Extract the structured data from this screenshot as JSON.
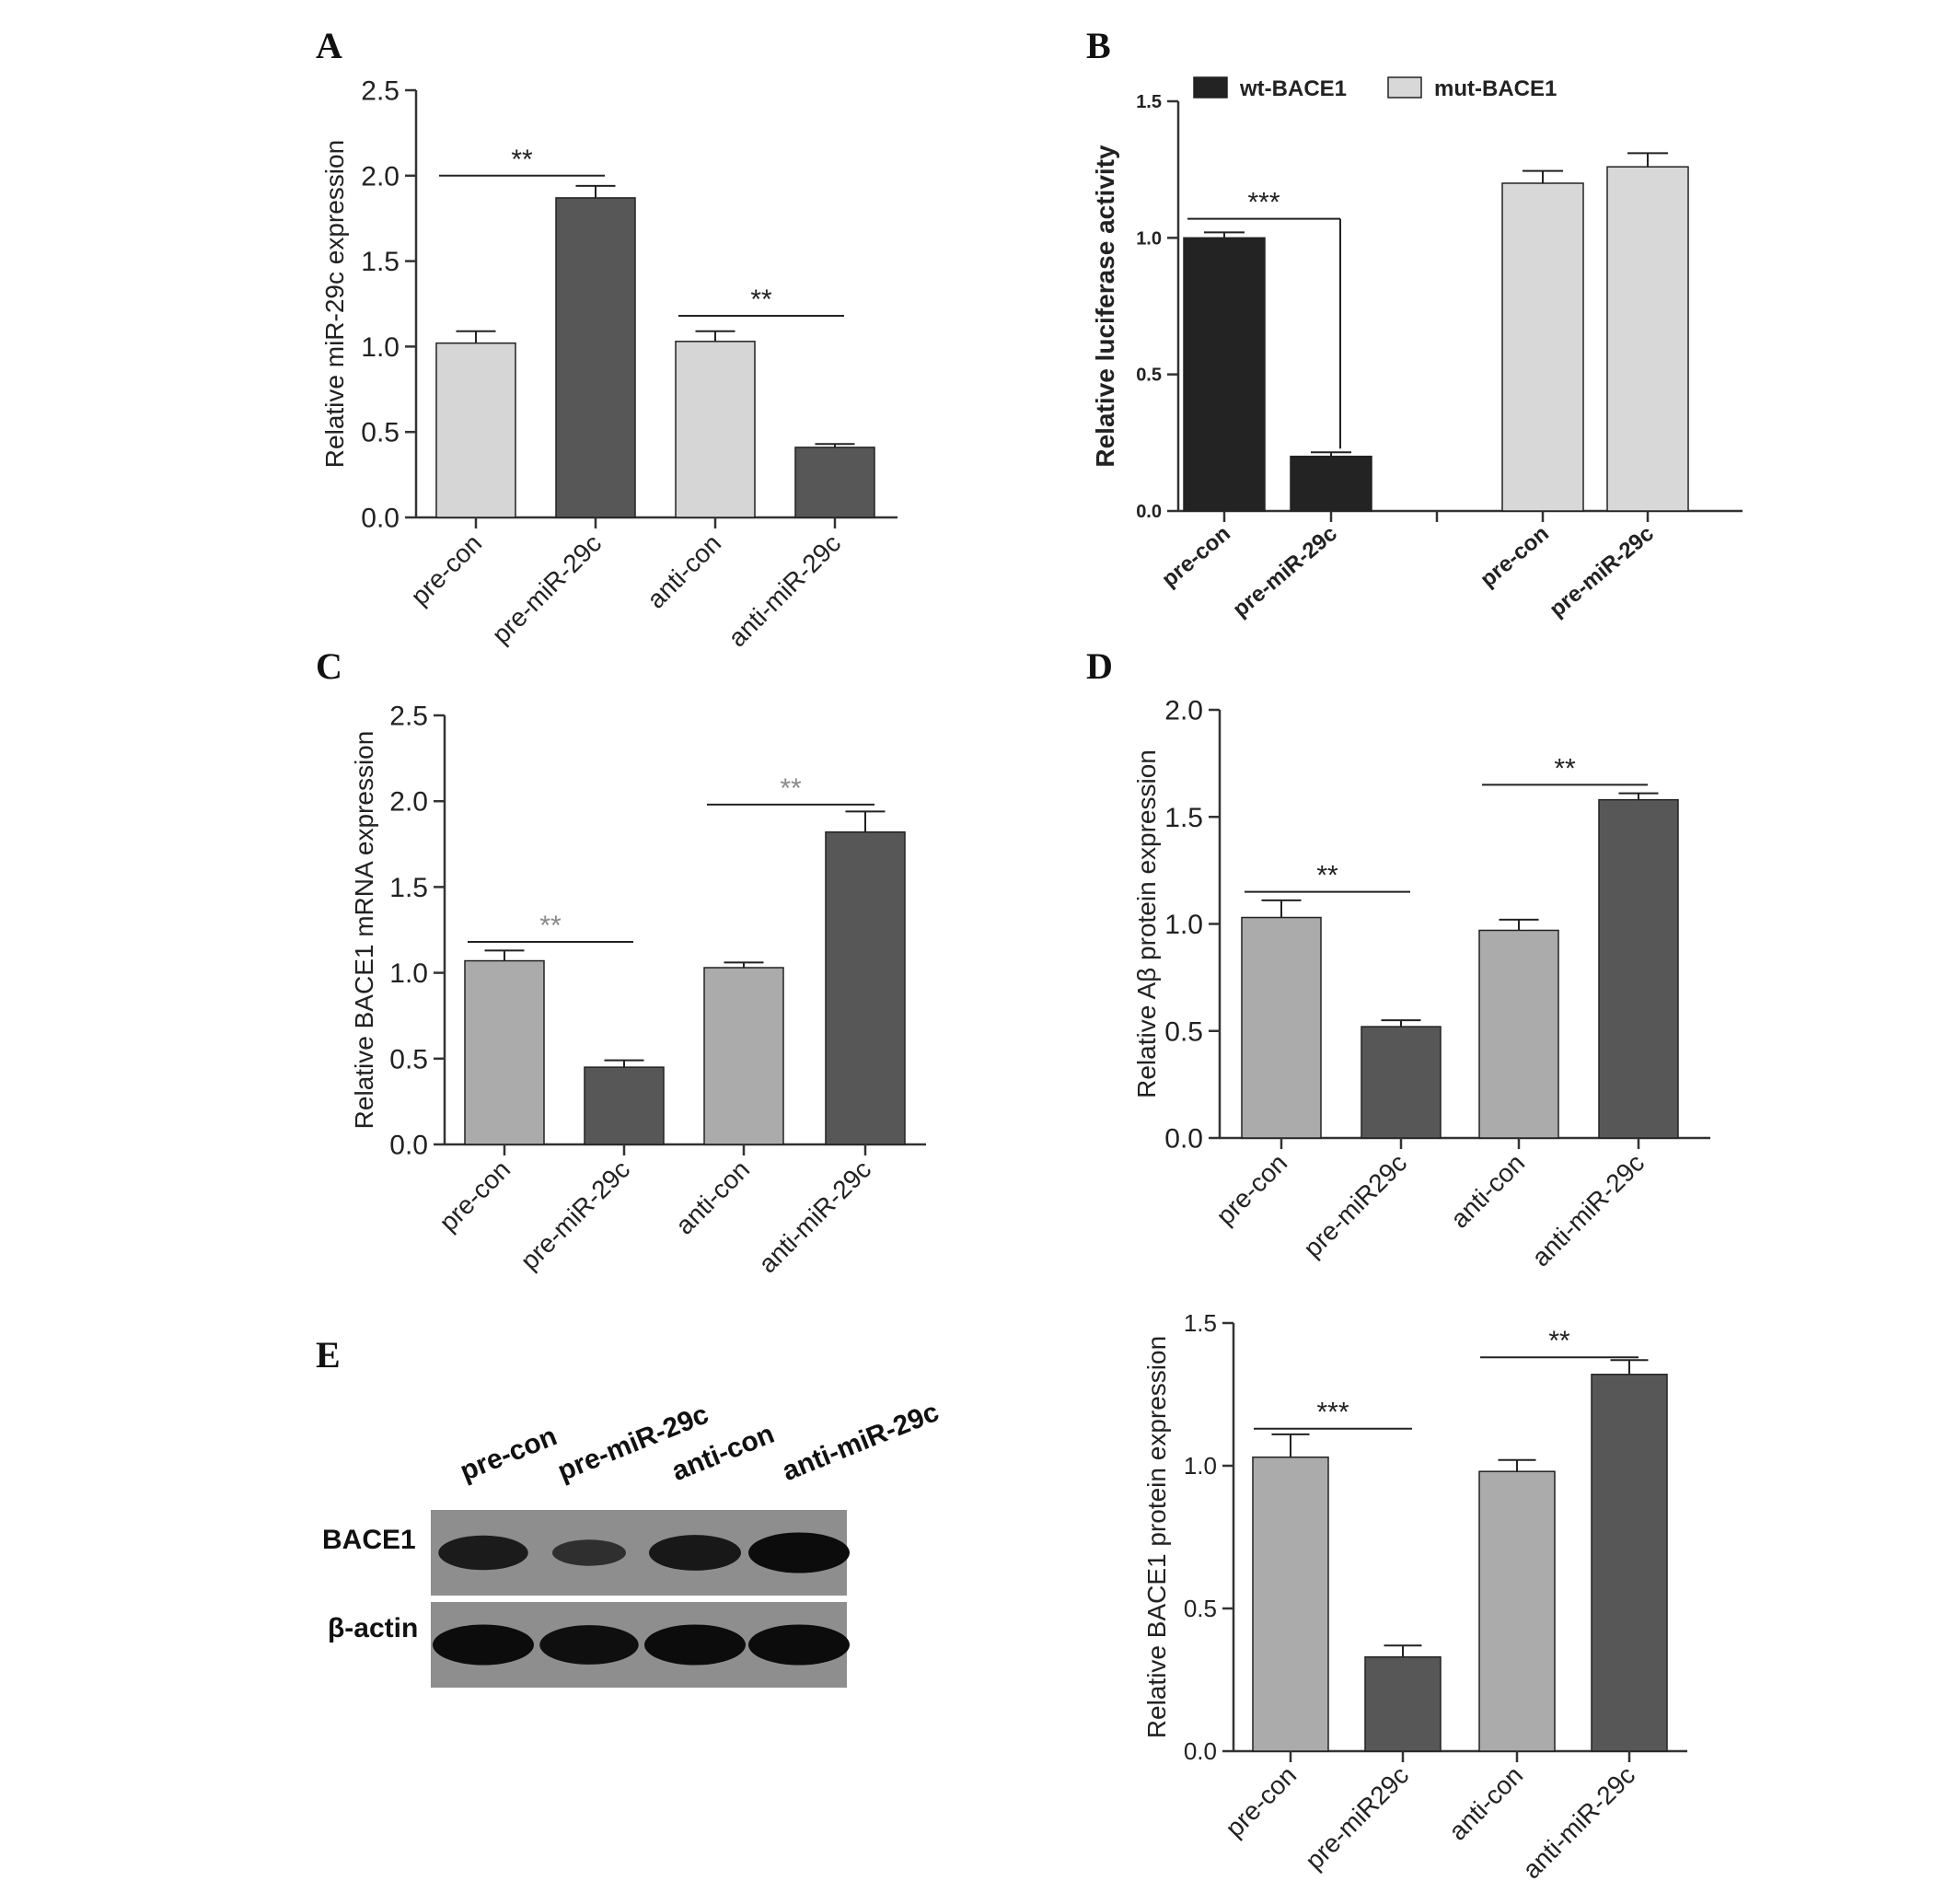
{
  "panels": {
    "A": "A",
    "B": "B",
    "C": "C",
    "D": "D",
    "E": "E"
  },
  "chart_data": [
    {
      "id": "A",
      "type": "bar",
      "categories": [
        "pre-con",
        "pre-miR-29c",
        "anti-con",
        "anti-miR-29c"
      ],
      "values": [
        1.02,
        1.87,
        1.03,
        0.41
      ],
      "errors": [
        0.07,
        0.07,
        0.06,
        0.02
      ],
      "colors": [
        "#d6d6d6",
        "#575757",
        "#d6d6d6",
        "#575757"
      ],
      "ylabel": "Relative miR-29c expression",
      "ylim": [
        0,
        2.5
      ],
      "yticks": [
        "0.0",
        "0.5",
        "1.0",
        "1.5",
        "2.0",
        "2.5"
      ],
      "annotations": [
        {
          "from": 0,
          "to": 1,
          "y": 2.0,
          "text": "**"
        },
        {
          "from": 2,
          "to": 3,
          "y": 1.18,
          "text": "**"
        }
      ]
    },
    {
      "id": "B",
      "type": "bar",
      "categories": [
        "pre-con",
        "pre-miR-29c",
        "pre-con",
        "pre-miR-29c"
      ],
      "values": [
        1.0,
        0.2,
        1.2,
        1.26
      ],
      "errors": [
        0.02,
        0.015,
        0.045,
        0.05
      ],
      "colors": [
        "#232323",
        "#232323",
        "#d8d8d8",
        "#d8d8d8"
      ],
      "legend": [
        {
          "name": "wt-BACE1",
          "color": "#232323"
        },
        {
          "name": "mut-BACE1",
          "color": "#d8d8d8"
        }
      ],
      "legend_position": "top",
      "ylabel": "Relative luciferase activity",
      "ylim": [
        0,
        1.5
      ],
      "yticks": [
        "0.0",
        "0.5",
        "1.0",
        "1.5"
      ],
      "annotations": [
        {
          "from": 0,
          "to": 1,
          "y": 1.07,
          "text": "***"
        }
      ]
    },
    {
      "id": "C",
      "type": "bar",
      "categories": [
        "pre-con",
        "pre-miR-29c",
        "anti-con",
        "anti-miR-29c"
      ],
      "values": [
        1.07,
        0.45,
        1.03,
        1.82
      ],
      "errors": [
        0.06,
        0.04,
        0.03,
        0.12
      ],
      "colors": [
        "#ababab",
        "#575757",
        "#ababab",
        "#575757"
      ],
      "ylabel": "Relative BACE1 mRNA expression",
      "ylim": [
        0,
        2.5
      ],
      "yticks": [
        "0.0",
        "0.5",
        "1.0",
        "1.5",
        "2.0",
        "2.5"
      ],
      "annotations": [
        {
          "from": 0,
          "to": 1,
          "y": 1.18,
          "text": "**"
        },
        {
          "from": 2,
          "to": 3,
          "y": 1.98,
          "text": "**"
        }
      ]
    },
    {
      "id": "D",
      "type": "bar",
      "categories": [
        "pre-con",
        "pre-miR29c",
        "anti-con",
        "anti-miR-29c"
      ],
      "values": [
        1.03,
        0.52,
        0.97,
        1.58
      ],
      "errors": [
        0.08,
        0.03,
        0.05,
        0.03
      ],
      "colors": [
        "#ababab",
        "#575757",
        "#ababab",
        "#575757"
      ],
      "ylabel": "Relative Aβ  protein expression",
      "ylim": [
        0,
        2.0
      ],
      "yticks": [
        "0.0",
        "0.5",
        "1.0",
        "1.5",
        "2.0"
      ],
      "annotations": [
        {
          "from": 0,
          "to": 1,
          "y": 1.15,
          "text": "**"
        },
        {
          "from": 2,
          "to": 3,
          "y": 1.65,
          "text": "**"
        }
      ]
    },
    {
      "id": "E",
      "type": "bar",
      "categories": [
        "pre-con",
        "pre-miR29c",
        "anti-con",
        "anti-miR-29c"
      ],
      "values": [
        1.03,
        0.33,
        0.98,
        1.32
      ],
      "errors": [
        0.08,
        0.04,
        0.04,
        0.05
      ],
      "colors": [
        "#ababab",
        "#575757",
        "#ababab",
        "#575757"
      ],
      "ylabel": "Relative BACE1 protein expression",
      "ylim": [
        0,
        1.5
      ],
      "yticks": [
        "0.0",
        "0.5",
        "1.0",
        "1.5"
      ],
      "annotations": [
        {
          "from": 0,
          "to": 1,
          "y": 1.13,
          "text": "***"
        },
        {
          "from": 2,
          "to": 3,
          "y": 1.38,
          "text": "**"
        }
      ]
    }
  ],
  "blot": {
    "lanes": [
      "pre-con",
      "pre-miR-29c",
      "anti-con",
      "anti-miR-29c"
    ],
    "rows": [
      {
        "label": "BACE1",
        "intensity": [
          0.75,
          0.4,
          0.8,
          1.0
        ]
      },
      {
        "label": "β-actin",
        "intensity": [
          1.0,
          0.95,
          1.0,
          1.0
        ]
      }
    ]
  }
}
